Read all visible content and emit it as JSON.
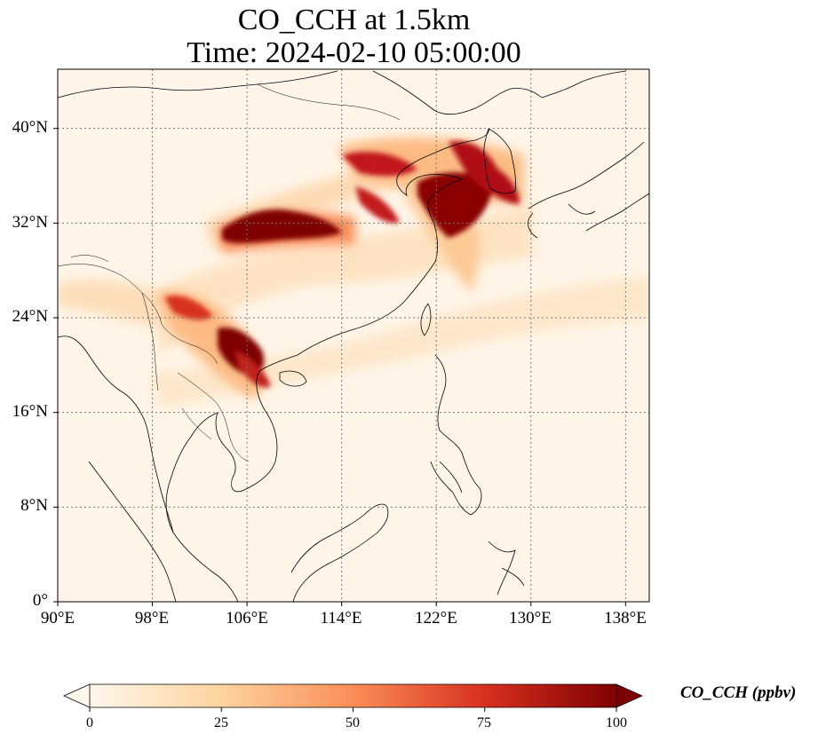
{
  "title": {
    "line1": "CO_CCH at 1.5km",
    "line2": "Time: 2024-02-10 05:00:00"
  },
  "map": {
    "lon_range": [
      90,
      140
    ],
    "lat_range": [
      0,
      45
    ],
    "gridlines": "dotted",
    "x_ticks": [
      "90°E",
      "98°E",
      "106°E",
      "114°E",
      "122°E",
      "130°E",
      "138°E"
    ],
    "y_ticks": [
      "0°",
      "8°N",
      "16°N",
      "24°N",
      "32°N",
      "40°N"
    ]
  },
  "colorbar": {
    "label": "CO_CCH (ppbv)",
    "ticks": [
      "0",
      "25",
      "50",
      "75",
      "100"
    ],
    "range": [
      0,
      100
    ],
    "extend": "both",
    "colormap": "OrRd",
    "colors": [
      "#fff7ec",
      "#fdd49e",
      "#fc8d59",
      "#d7301f",
      "#7f0000"
    ]
  }
}
